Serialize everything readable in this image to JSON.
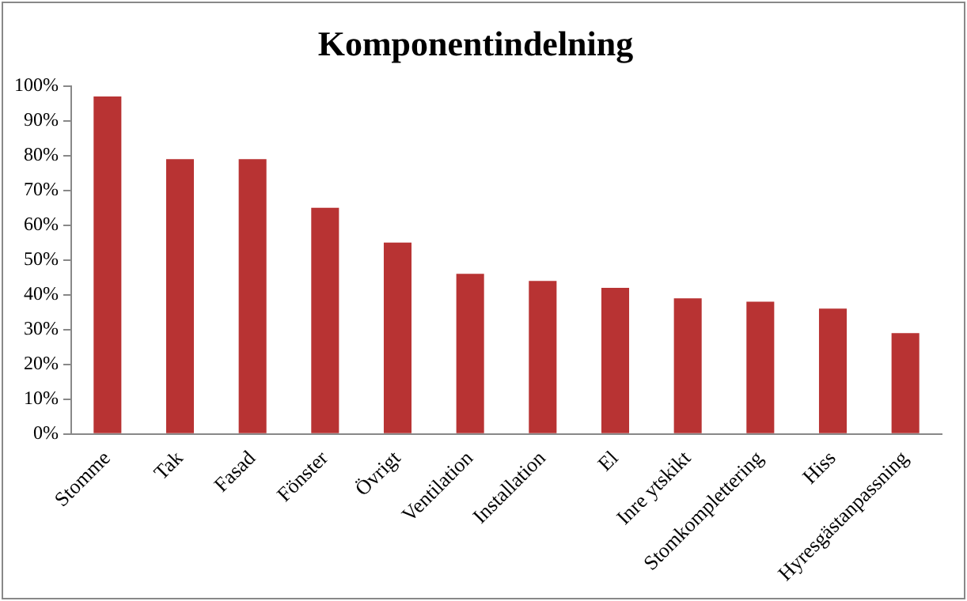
{
  "chart_data": {
    "type": "bar",
    "title": "Komponentindelning",
    "categories": [
      "Stomme",
      "Tak",
      "Fasad",
      "Fönster",
      "Övrigt",
      "Ventilation",
      "Installation",
      "El",
      "Inre ytskikt",
      "Stomkomplettering",
      "Hiss",
      "Hyresgästanpassning"
    ],
    "values": [
      97,
      79,
      79,
      65,
      55,
      46,
      44,
      42,
      39,
      38,
      36,
      29
    ],
    "color": "#b83333",
    "ylim": [
      0,
      100
    ],
    "yticks": [
      {
        "value": 0,
        "label": "0%"
      },
      {
        "value": 10,
        "label": "10%"
      },
      {
        "value": 20,
        "label": "20%"
      },
      {
        "value": 30,
        "label": "30%"
      },
      {
        "value": 40,
        "label": "40%"
      },
      {
        "value": 50,
        "label": "50%"
      },
      {
        "value": 60,
        "label": "60%"
      },
      {
        "value": 70,
        "label": "70%"
      },
      {
        "value": 80,
        "label": "80%"
      },
      {
        "value": 90,
        "label": "90%"
      },
      {
        "value": 100,
        "label": "100%"
      }
    ],
    "grid": false,
    "legend": false
  }
}
